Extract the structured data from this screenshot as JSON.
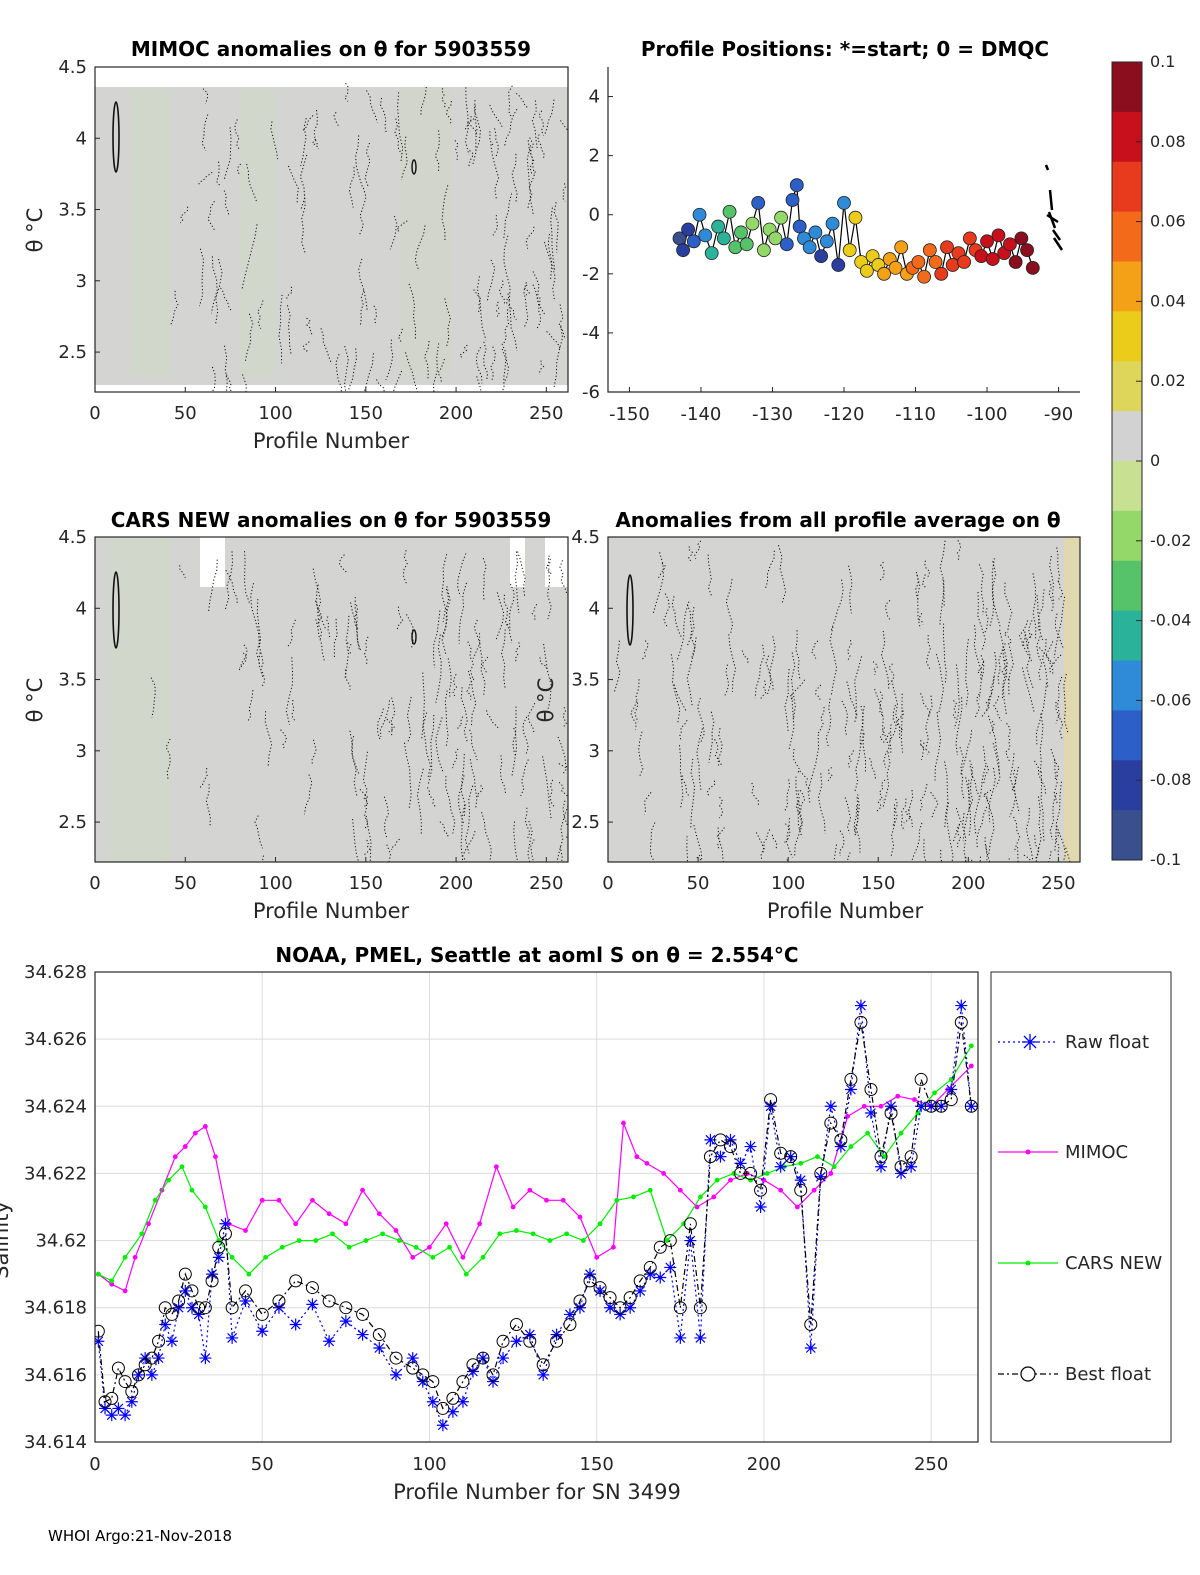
{
  "footer": "WHOI Argo:21-Nov-2018",
  "panels": {
    "mimoc": {
      "title": "MIMOC anomalies on θ  for 5903559",
      "xlabel": "Profile Number",
      "ylabel": "θ °C",
      "xticks": [
        "0",
        "50",
        "100",
        "150",
        "200",
        "250"
      ],
      "yticks": [
        "2.5",
        "3",
        "3.5",
        "4",
        "4.5"
      ]
    },
    "positions": {
      "title": "Profile Positions: *=start; 0 = DMQC",
      "xticks": [
        "-150",
        "-140",
        "-130",
        "-120",
        "-110",
        "-100",
        "-90"
      ],
      "yticks": [
        "4",
        "2",
        "0",
        "-2",
        "-4",
        "-6"
      ]
    },
    "cars": {
      "title": "CARS NEW anomalies on θ for 5903559",
      "xlabel": "Profile Number",
      "ylabel": "θ °C",
      "xticks": [
        "0",
        "50",
        "100",
        "150",
        "200",
        "250"
      ],
      "yticks": [
        "2.5",
        "3",
        "3.5",
        "4",
        "4.5"
      ]
    },
    "allavg": {
      "title": "Anomalies from all profile average on θ",
      "xlabel": "Profile Number",
      "ylabel": "θ °C",
      "xticks": [
        "0",
        "50",
        "100",
        "150",
        "200",
        "250"
      ],
      "yticks": [
        "2.5",
        "3",
        "3.5",
        "4",
        "4.5"
      ]
    }
  },
  "colorbar": {
    "ticks": [
      "0.1",
      "0.08",
      "0.06",
      "0.04",
      "0.02",
      "0",
      "-0.02",
      "-0.04",
      "-0.06",
      "-0.08",
      "-0.1"
    ],
    "colors": [
      "#8b0e1f",
      "#c8101c",
      "#e83a1c",
      "#f36b1a",
      "#f5a117",
      "#eccc1a",
      "#ddd65a",
      "#d2d2d2",
      "#c7e091",
      "#95d86a",
      "#56c36b",
      "#2bb39a",
      "#2f8bd8",
      "#2c5fc7",
      "#2a3ea0",
      "#3a4f8e"
    ]
  },
  "chart_data": [
    {
      "id": "salinity",
      "type": "line",
      "title": "NOAA, PMEL, Seattle at aoml S on θ = 2.554°C",
      "xlabel": "Profile Number for SN 3499",
      "ylabel": "Salinity",
      "xlim": [
        0,
        264
      ],
      "ylim": [
        34.614,
        34.628
      ],
      "xticks": [
        "0",
        "50",
        "100",
        "150",
        "200",
        "250"
      ],
      "yticks": [
        "34.614",
        "34.616",
        "34.618",
        "34.62",
        "34.622",
        "34.624",
        "34.626",
        "34.628"
      ],
      "legend": [
        "Raw float",
        "MIMOC",
        "CARS NEW",
        "Best float"
      ],
      "series": [
        {
          "name": "MIMOC",
          "color": "#ff00ff",
          "x": [
            1,
            5,
            9,
            12,
            16,
            20,
            24,
            27,
            30,
            33,
            36,
            40,
            45,
            50,
            55,
            60,
            65,
            70,
            75,
            80,
            85,
            90,
            95,
            100,
            105,
            110,
            115,
            120,
            125,
            130,
            135,
            140,
            145,
            150,
            155,
            158,
            162,
            165,
            170,
            175,
            180,
            185,
            190,
            195,
            200,
            205,
            210,
            215,
            220,
            225,
            230,
            235,
            240,
            245,
            250,
            255,
            262
          ],
          "y": [
            34.619,
            34.6187,
            34.6185,
            34.6195,
            34.6205,
            34.6215,
            34.6225,
            34.6228,
            34.6232,
            34.6234,
            34.6225,
            34.6205,
            34.6203,
            34.6212,
            34.6212,
            34.6205,
            34.6212,
            34.6208,
            34.6205,
            34.6215,
            34.6208,
            34.6203,
            34.6195,
            34.6198,
            34.6205,
            34.6195,
            34.6205,
            34.6222,
            34.621,
            34.6215,
            34.6212,
            34.6212,
            34.6207,
            34.6195,
            34.6198,
            34.6235,
            34.6225,
            34.6223,
            34.622,
            34.6215,
            34.621,
            34.6213,
            34.6218,
            34.622,
            34.6218,
            34.6215,
            34.621,
            34.6215,
            34.622,
            34.6237,
            34.624,
            34.624,
            34.6243,
            34.6242,
            34.624,
            34.6245,
            34.6252
          ]
        },
        {
          "name": "CARS NEW",
          "color": "#00ee00",
          "x": [
            1,
            5,
            9,
            14,
            18,
            22,
            26,
            29,
            33,
            37,
            41,
            46,
            51,
            56,
            61,
            66,
            71,
            76,
            81,
            86,
            91,
            96,
            101,
            106,
            111,
            116,
            121,
            126,
            131,
            136,
            141,
            146,
            151,
            156,
            161,
            166,
            171,
            176,
            181,
            186,
            191,
            196,
            201,
            206,
            211,
            216,
            221,
            226,
            231,
            236,
            241,
            246,
            251,
            256,
            262
          ],
          "y": [
            34.619,
            34.6188,
            34.6195,
            34.6202,
            34.6212,
            34.6218,
            34.6222,
            34.6215,
            34.621,
            34.62,
            34.6195,
            34.619,
            34.6195,
            34.6198,
            34.62,
            34.62,
            34.6202,
            34.6198,
            34.62,
            34.6202,
            34.62,
            34.6198,
            34.6195,
            34.6198,
            34.619,
            34.6195,
            34.6202,
            34.6203,
            34.6202,
            34.62,
            34.6202,
            34.62,
            34.6205,
            34.6212,
            34.6213,
            34.6215,
            34.62,
            34.6205,
            34.6213,
            34.6218,
            34.622,
            34.6218,
            34.622,
            34.6222,
            34.6223,
            34.6225,
            34.6222,
            34.6228,
            34.6232,
            34.6225,
            34.6232,
            34.6238,
            34.6244,
            34.6248,
            34.6258
          ]
        },
        {
          "name": "Raw float",
          "color": "#0000ff",
          "x": [
            1,
            3,
            5,
            7,
            9,
            11,
            13,
            15,
            17,
            19,
            21,
            23,
            25,
            27,
            29,
            31,
            33,
            35,
            37,
            39,
            41,
            45,
            50,
            55,
            60,
            65,
            70,
            75,
            80,
            85,
            90,
            95,
            98,
            101,
            104,
            107,
            110,
            113,
            116,
            119,
            122,
            126,
            130,
            134,
            138,
            142,
            145,
            148,
            151,
            154,
            157,
            160,
            163,
            166,
            169,
            172,
            175,
            178,
            181,
            184,
            187,
            190,
            193,
            196,
            199,
            202,
            205,
            208,
            211,
            214,
            217,
            220,
            223,
            226,
            229,
            232,
            235,
            238,
            241,
            244,
            247,
            250,
            253,
            256,
            259,
            262
          ],
          "y": [
            34.617,
            34.615,
            34.6148,
            34.615,
            34.6148,
            34.6152,
            34.616,
            34.6165,
            34.616,
            34.6165,
            34.6175,
            34.617,
            34.618,
            34.6185,
            34.618,
            34.6178,
            34.6165,
            34.619,
            34.6195,
            34.6205,
            34.6171,
            34.6182,
            34.6173,
            34.618,
            34.6175,
            34.6181,
            34.617,
            34.6176,
            34.6172,
            34.6168,
            34.616,
            34.6165,
            34.6158,
            34.6152,
            34.6145,
            34.6149,
            34.6152,
            34.6161,
            34.6165,
            34.6158,
            34.6165,
            34.617,
            34.6172,
            34.616,
            34.6172,
            34.6178,
            34.618,
            34.619,
            34.6185,
            34.618,
            34.6178,
            34.618,
            34.6185,
            34.619,
            34.6189,
            34.6192,
            34.6171,
            34.62,
            34.6171,
            34.623,
            34.6225,
            34.623,
            34.6223,
            34.6228,
            34.621,
            34.624,
            34.6222,
            34.6225,
            34.6218,
            34.6168,
            34.6219,
            34.624,
            34.6228,
            34.6245,
            34.627,
            34.6238,
            34.6222,
            34.624,
            34.622,
            34.6222,
            34.624,
            34.624,
            34.624,
            34.6245,
            34.627,
            34.624
          ]
        },
        {
          "name": "Best float",
          "color": "#000000",
          "x": [
            1,
            3,
            5,
            7,
            9,
            11,
            13,
            15,
            17,
            19,
            21,
            23,
            25,
            27,
            29,
            31,
            33,
            35,
            37,
            39,
            41,
            45,
            50,
            55,
            60,
            65,
            70,
            75,
            80,
            85,
            90,
            95,
            98,
            101,
            104,
            107,
            110,
            113,
            116,
            119,
            122,
            126,
            130,
            134,
            138,
            142,
            145,
            148,
            151,
            154,
            157,
            160,
            163,
            166,
            169,
            172,
            175,
            178,
            181,
            184,
            187,
            190,
            193,
            196,
            199,
            202,
            205,
            208,
            211,
            214,
            217,
            220,
            223,
            226,
            229,
            232,
            235,
            238,
            241,
            244,
            247,
            250,
            253,
            256,
            259,
            262
          ],
          "y": [
            34.6173,
            34.6152,
            34.6153,
            34.6162,
            34.6158,
            34.6155,
            34.616,
            34.6163,
            34.6165,
            34.617,
            34.618,
            34.6178,
            34.6182,
            34.619,
            34.6185,
            34.618,
            34.618,
            34.6188,
            34.6198,
            34.6202,
            34.618,
            34.6185,
            34.6178,
            34.6182,
            34.6188,
            34.6186,
            34.6182,
            34.618,
            34.6178,
            34.6172,
            34.6165,
            34.6162,
            34.616,
            34.6158,
            34.615,
            34.6153,
            34.6158,
            34.6163,
            34.6165,
            34.616,
            34.617,
            34.6175,
            34.617,
            34.6163,
            34.617,
            34.6175,
            34.6182,
            34.6188,
            34.6186,
            34.6183,
            34.618,
            34.6183,
            34.6188,
            34.6192,
            34.6198,
            34.62,
            34.618,
            34.6205,
            34.618,
            34.6225,
            34.623,
            34.6228,
            34.622,
            34.622,
            34.6215,
            34.6242,
            34.6226,
            34.6225,
            34.6215,
            34.6175,
            34.622,
            34.6235,
            34.623,
            34.6248,
            34.6265,
            34.6245,
            34.6225,
            34.6238,
            34.6222,
            34.6225,
            34.6248,
            34.624,
            34.624,
            34.6242,
            34.6265,
            34.624
          ]
        }
      ]
    },
    {
      "id": "positions",
      "type": "scatter",
      "title": "Profile Positions: *=start; 0 = DMQC",
      "xlim": [
        -153,
        -87
      ],
      "ylim": [
        -6,
        5
      ],
      "lon": [
        -143,
        -142.5,
        -141.8,
        -141,
        -140.2,
        -139.4,
        -138.5,
        -137.6,
        -136.8,
        -136,
        -135.2,
        -134.4,
        -133.6,
        -132.8,
        -132,
        -131.2,
        -130.4,
        -129.6,
        -128.8,
        -128,
        -127.2,
        -126.6,
        -126.2,
        -125.6,
        -124.8,
        -124,
        -123.2,
        -122.4,
        -121.6,
        -120.8,
        -120,
        -119.2,
        -118.4,
        -117.6,
        -116.8,
        -116,
        -115.2,
        -114.4,
        -113.6,
        -112.8,
        -112,
        -111.2,
        -110.4,
        -109.6,
        -108.8,
        -108,
        -107.2,
        -106.4,
        -105.6,
        -104.8,
        -104,
        -103.2,
        -102.4,
        -101.6,
        -100.8,
        -100,
        -99.2,
        -98.4,
        -97.6,
        -96.8,
        -96,
        -95.2,
        -94.4,
        -93.6
      ],
      "lat": [
        -0.8,
        -1.2,
        -0.5,
        -0.9,
        0,
        -0.7,
        -1.3,
        -0.4,
        -0.8,
        0.1,
        -1.1,
        -0.6,
        -1.0,
        -0.3,
        0.4,
        -1.2,
        -0.5,
        -0.8,
        -0.1,
        -1.0,
        0.5,
        1.0,
        -0.4,
        -0.8,
        -1.1,
        -0.6,
        -1.4,
        -0.9,
        -0.3,
        -1.7,
        0.4,
        -1.2,
        -0.1,
        -1.6,
        -1.9,
        -1.4,
        -1.7,
        -2.0,
        -1.5,
        -1.8,
        -1.1,
        -2.0,
        -1.8,
        -1.6,
        -2.1,
        -1.2,
        -1.6,
        -2.0,
        -1.1,
        -1.7,
        -1.3,
        -1.6,
        -0.8,
        -1.2,
        -1.4,
        -0.9,
        -1.5,
        -0.7,
        -1.3,
        -1.0,
        -1.6,
        -0.8,
        -1.2,
        -1.8
      ],
      "value": [
        -0.1,
        -0.09,
        -0.08,
        -0.07,
        -0.06,
        -0.055,
        -0.05,
        -0.045,
        -0.04,
        -0.035,
        -0.03,
        -0.03,
        -0.028,
        -0.026,
        -0.075,
        -0.024,
        -0.022,
        -0.02,
        -0.018,
        -0.075,
        -0.072,
        -0.07,
        -0.068,
        -0.065,
        -0.062,
        -0.06,
        -0.08,
        -0.058,
        -0.056,
        -0.09,
        -0.054,
        0.03,
        0.032,
        0.034,
        0.035,
        0.036,
        0.038,
        0.04,
        0.042,
        0.044,
        0.046,
        0.05,
        0.055,
        0.06,
        0.062,
        0.064,
        0.066,
        0.068,
        0.07,
        0.072,
        0.074,
        0.076,
        0.078,
        0.08,
        0.082,
        0.084,
        0.086,
        0.088,
        0.09,
        0.092,
        0.094,
        0.096,
        0.098,
        0.1
      ]
    }
  ]
}
